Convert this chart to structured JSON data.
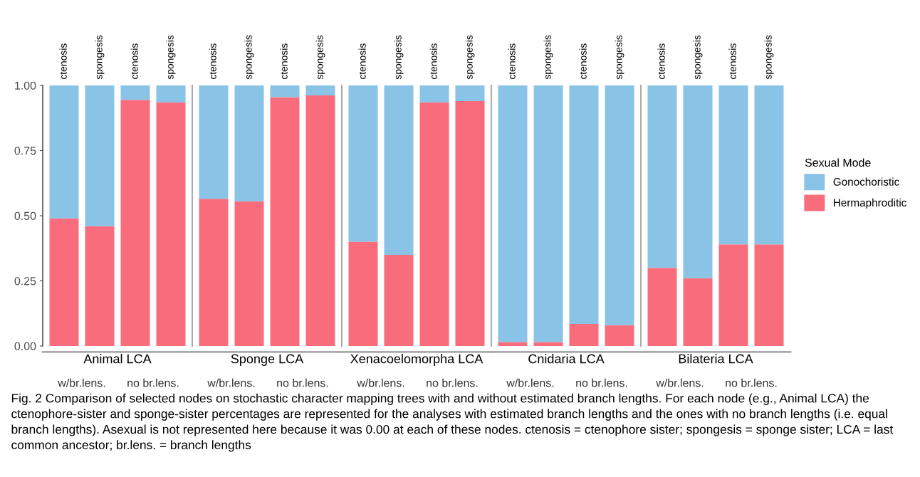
{
  "chart_data": [
    {
      "type": "bar",
      "stacked": true,
      "xlabel": "Animal LCA",
      "categories": [
        "ctenosis",
        "spongesis",
        "ctenosis",
        "spongesis"
      ],
      "ylim": [
        0,
        1
      ],
      "yticks": [
        {
          "value": 0,
          "label": "0.00"
        },
        {
          "value": 0.25,
          "label": "0.25"
        },
        {
          "value": 0.5,
          "label": "0.50"
        },
        {
          "value": 0.75,
          "label": "0.75"
        },
        {
          "value": 1,
          "label": "1.00"
        }
      ],
      "series": [
        {
          "color": "#f96c7c",
          "values": [
            0.49,
            0.46,
            0.945,
            0.935
          ]
        },
        {
          "color": "#89c3e6",
          "values": [
            0.51,
            0.54,
            0.055,
            0.065
          ]
        }
      ],
      "annotations": [
        "w/br.lens.",
        "no br.lens."
      ]
    },
    {
      "type": "bar",
      "stacked": true,
      "xlabel": "Sponge LCA",
      "categories": [
        "ctenosis",
        "spongesis",
        "ctenosis",
        "spongesis"
      ],
      "ylim": [
        0,
        1
      ],
      "tick_labels": "x",
      "series": [
        {
          "color": "#f96c7c",
          "values": [
            0.565,
            0.555,
            0.955,
            0.962
          ]
        },
        {
          "color": "#89c3e6",
          "values": [
            0.435,
            0.445,
            0.045,
            0.038
          ]
        }
      ],
      "annotations": [
        "w/br.lens.",
        "no br.lens."
      ]
    },
    {
      "type": "bar",
      "stacked": true,
      "xlabel": "Xenacoelomorpha LCA",
      "categories": [
        "ctenosis",
        "spongesis",
        "ctenosis",
        "spongesis"
      ],
      "ylim": [
        0,
        1
      ],
      "tick_labels": "x",
      "series": [
        {
          "color": "#f96c7c",
          "values": [
            0.4,
            0.35,
            0.935,
            0.94
          ]
        },
        {
          "color": "#89c3e6",
          "values": [
            0.6,
            0.65,
            0.065,
            0.06
          ]
        }
      ],
      "annotations": [
        "w/br.lens.",
        "no br.lens."
      ]
    },
    {
      "type": "bar",
      "stacked": true,
      "xlabel": "Cnidaria LCA",
      "categories": [
        "ctenosis",
        "spongesis",
        "ctenosis",
        "spongesis"
      ],
      "ylim": [
        0,
        1
      ],
      "tick_labels": "x",
      "series": [
        {
          "color": "#f96c7c",
          "values": [
            0.015,
            0.015,
            0.085,
            0.08
          ]
        },
        {
          "color": "#89c3e6",
          "values": [
            0.985,
            0.985,
            0.915,
            0.92
          ]
        }
      ],
      "annotations": [
        "w/br.lens.",
        "no br.lens."
      ]
    },
    {
      "type": "bar",
      "stacked": true,
      "xlabel": "Bilateria LCA",
      "categories": [
        "ctenosis",
        "spongesis",
        "ctenosis",
        "spongesis"
      ],
      "ylim": [
        0,
        1
      ],
      "tick_labels": "x",
      "legend": "right",
      "legend_title": "Sexual Mode",
      "series": [
        {
          "name": "Hermaphroditic",
          "color": "#f96c7c",
          "values": [
            0.3,
            0.26,
            0.39,
            0.39
          ]
        },
        {
          "name": "Gonochoristic",
          "color": "#89c3e6",
          "values": [
            0.7,
            0.74,
            0.61,
            0.61
          ]
        }
      ],
      "annotations": [
        "w/br.lens.",
        "no br.lens.",
        "Fig. 2 Comparison of selected nodes on stochastic character mapping trees with and without estimated branch lengths. For each node (e.g., Animal LCA) the ctenophore-sister and sponge-sister percentages are represented for the analyses with estimated branch lengths and the ones with no branch lengths (i.e. equal branch lengths). Asexual is not represented here because it was 0.00 at each of these nodes. ctenosis = ctenophore sister; spongesis = sponge sister; LCA = last common ancestor; br.lens. = branch lengths"
      ]
    }
  ]
}
